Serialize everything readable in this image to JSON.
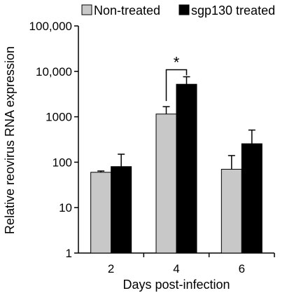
{
  "chart_data": {
    "type": "bar",
    "categories": [
      "2",
      "4",
      "6"
    ],
    "series": [
      {
        "name": "Non-treated",
        "values": [
          60,
          1150,
          70
        ],
        "errors": [
          4,
          520,
          70
        ],
        "color": "#c8c8c8"
      },
      {
        "name": "sgp130 treated",
        "values": [
          80,
          5200,
          255
        ],
        "errors": [
          70,
          2400,
          255
        ],
        "color": "#000000"
      }
    ],
    "xlabel": "Days post-infection",
    "ylabel": "Relative reovirus RNA expression",
    "yscale": "log",
    "ylim": [
      1,
      100000
    ],
    "yticks": [
      1,
      10,
      100,
      1000,
      10000,
      100000
    ],
    "ytick_labels": [
      "1",
      "10",
      "100",
      "1000",
      "10,000",
      "100,000"
    ],
    "legend_position": "top",
    "grid": false,
    "annotations": [
      {
        "category": "4",
        "text": "*"
      }
    ]
  }
}
